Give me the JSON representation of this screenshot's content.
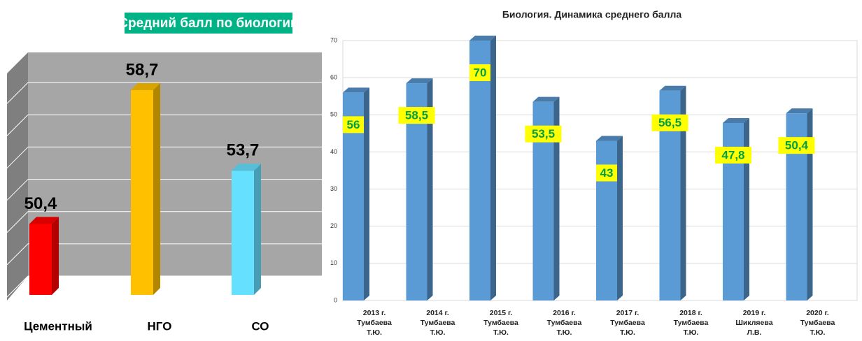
{
  "chart_data": [
    {
      "type": "bar3d",
      "title": "Средний балл по биологии",
      "categories": [
        "Цементный",
        "НГО",
        "СО"
      ],
      "values": [
        50.4,
        58.7,
        53.7
      ],
      "value_labels": [
        "50,4",
        "58,7",
        "53,7"
      ],
      "colors": [
        "#ff0000",
        "#ffc000",
        "#66e0ff"
      ],
      "ylim": [
        46,
        60
      ],
      "yticks": [
        46,
        48,
        50,
        52,
        54,
        56,
        58,
        60
      ],
      "grid": true
    },
    {
      "type": "bar",
      "title": "Биология. Динамика среднего балла",
      "categories": [
        [
          "2013 г.",
          "Тумбаева",
          "Т.Ю."
        ],
        [
          "2014 г.",
          "Тумбаева",
          "Т.Ю."
        ],
        [
          "2015 г.",
          "Тумбаева",
          "Т.Ю."
        ],
        [
          "2016 г.",
          "Тумбаева",
          "Т.Ю."
        ],
        [
          "2017 г.",
          "Тумбаева",
          "Т.Ю."
        ],
        [
          "2018 г.",
          "Тумбаева",
          "Т.Ю."
        ],
        [
          "2019 г.",
          "Шикляева",
          "Л.В."
        ],
        [
          "2020 г.",
          "Тумбаева",
          "Т.Ю."
        ]
      ],
      "values": [
        56,
        58.5,
        70,
        53.5,
        43,
        56.5,
        47.8,
        50.4
      ],
      "value_labels": [
        "56",
        "58,5",
        "70",
        "53,5",
        "43",
        "56,5",
        "47,8",
        "50,4"
      ],
      "color": "#5b9bd5",
      "ylim": [
        0,
        70
      ],
      "yticks": [
        0,
        10,
        20,
        30,
        40,
        50,
        60,
        70
      ],
      "grid": true
    }
  ]
}
